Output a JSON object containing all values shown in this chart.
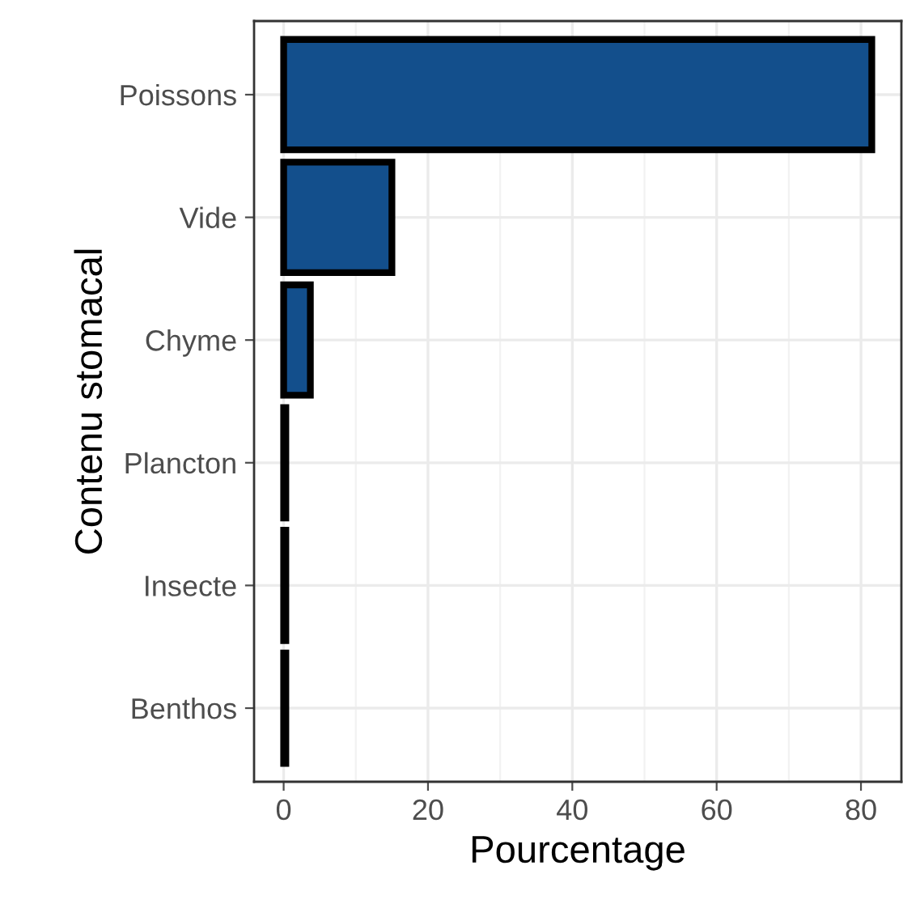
{
  "chart_data": {
    "type": "bar",
    "orientation": "horizontal",
    "xlabel": "Pourcentage",
    "ylabel": "Contenu stomacal",
    "categories": [
      "Poissons",
      "Vide",
      "Chyme",
      "Plancton",
      "Insecte",
      "Benthos"
    ],
    "values": [
      81.5,
      15.0,
      3.7,
      0.3,
      0.3,
      0.3
    ],
    "color": "#134f8c",
    "xlim": [
      -4.1,
      85.6
    ],
    "xticks": [
      0,
      20,
      40,
      60,
      80
    ],
    "grid": true
  }
}
